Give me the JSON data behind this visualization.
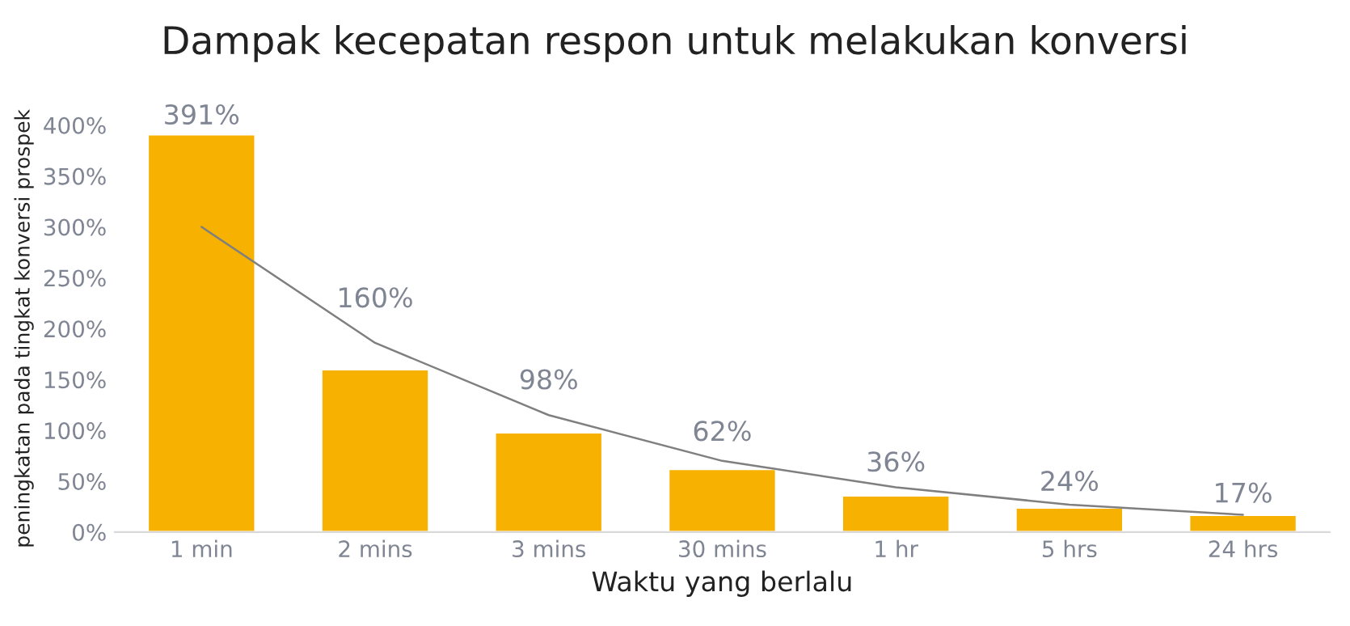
{
  "chart_data": {
    "type": "bar",
    "title": "Dampak kecepatan respon untuk melakukan konversi",
    "xlabel": "Waktu yang berlalu",
    "ylabel": "peningkatan pada tingkat konversi prospek",
    "categories": [
      "1 min",
      "2 mins",
      "3 mins",
      "30 mins",
      "1 hr",
      "5 hrs",
      "24 hrs"
    ],
    "series": [
      {
        "color": "#f7b100",
        "values": [
          391,
          160,
          98,
          62,
          36,
          24,
          17
        ],
        "value_labels": [
          "391%",
          "160%",
          "98%",
          "62%",
          "36%",
          "24%",
          "17%"
        ]
      },
      {
        "type": "line",
        "color": "#7f7f7f",
        "values": [
          300,
          186,
          115,
          70,
          44,
          27,
          17
        ]
      }
    ],
    "ylim": [
      0,
      400
    ],
    "yticks": [
      {
        "value": 0,
        "label": "0%"
      },
      {
        "value": 50,
        "label": "50%"
      },
      {
        "value": 100,
        "label": "100%"
      },
      {
        "value": 150,
        "label": "150%"
      },
      {
        "value": 200,
        "label": "200%"
      },
      {
        "value": 250,
        "label": "250%"
      },
      {
        "value": 300,
        "label": "300%"
      },
      {
        "value": 350,
        "label": "350%"
      },
      {
        "value": 400,
        "label": "400%"
      }
    ],
    "grid": false,
    "legend": false
  }
}
